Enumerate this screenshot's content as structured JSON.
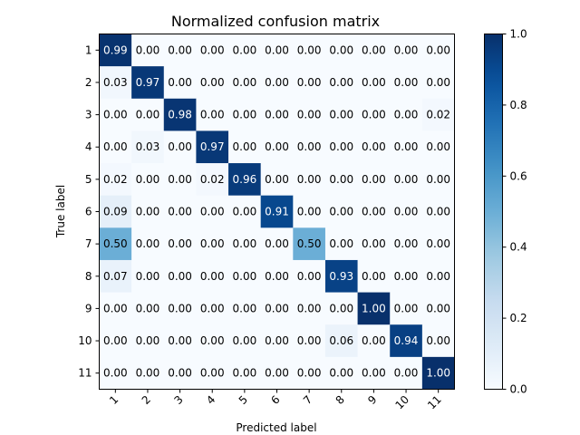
{
  "chart_data": {
    "type": "heatmap",
    "title": "Normalized confusion matrix",
    "xlabel": "Predicted label",
    "ylabel": "True label",
    "x_categories": [
      "1",
      "2",
      "3",
      "4",
      "5",
      "6",
      "7",
      "8",
      "9",
      "10",
      "11"
    ],
    "y_categories": [
      "1",
      "2",
      "3",
      "4",
      "5",
      "6",
      "7",
      "8",
      "9",
      "10",
      "11"
    ],
    "values": [
      [
        0.99,
        0.0,
        0.0,
        0.0,
        0.0,
        0.0,
        0.0,
        0.0,
        0.0,
        0.0,
        0.0
      ],
      [
        0.03,
        0.97,
        0.0,
        0.0,
        0.0,
        0.0,
        0.0,
        0.0,
        0.0,
        0.0,
        0.0
      ],
      [
        0.0,
        0.0,
        0.98,
        0.0,
        0.0,
        0.0,
        0.0,
        0.0,
        0.0,
        0.0,
        0.02
      ],
      [
        0.0,
        0.03,
        0.0,
        0.97,
        0.0,
        0.0,
        0.0,
        0.0,
        0.0,
        0.0,
        0.0
      ],
      [
        0.02,
        0.0,
        0.0,
        0.02,
        0.96,
        0.0,
        0.0,
        0.0,
        0.0,
        0.0,
        0.0
      ],
      [
        0.09,
        0.0,
        0.0,
        0.0,
        0.0,
        0.91,
        0.0,
        0.0,
        0.0,
        0.0,
        0.0
      ],
      [
        0.5,
        0.0,
        0.0,
        0.0,
        0.0,
        0.0,
        0.5,
        0.0,
        0.0,
        0.0,
        0.0
      ],
      [
        0.07,
        0.0,
        0.0,
        0.0,
        0.0,
        0.0,
        0.0,
        0.93,
        0.0,
        0.0,
        0.0
      ],
      [
        0.0,
        0.0,
        0.0,
        0.0,
        0.0,
        0.0,
        0.0,
        0.0,
        1.0,
        0.0,
        0.0
      ],
      [
        0.0,
        0.0,
        0.0,
        0.0,
        0.0,
        0.0,
        0.0,
        0.06,
        0.0,
        0.94,
        0.0
      ],
      [
        0.0,
        0.0,
        0.0,
        0.0,
        0.0,
        0.0,
        0.0,
        0.0,
        0.0,
        0.0,
        1.0
      ]
    ],
    "colormap": "Blues",
    "colorbar": {
      "min": 0.0,
      "max": 1.0,
      "ticks": [
        "0.0",
        "0.2",
        "0.4",
        "0.6",
        "0.8",
        "1.0"
      ]
    },
    "x_tick_rotation": "45 degrees",
    "grid": false
  }
}
